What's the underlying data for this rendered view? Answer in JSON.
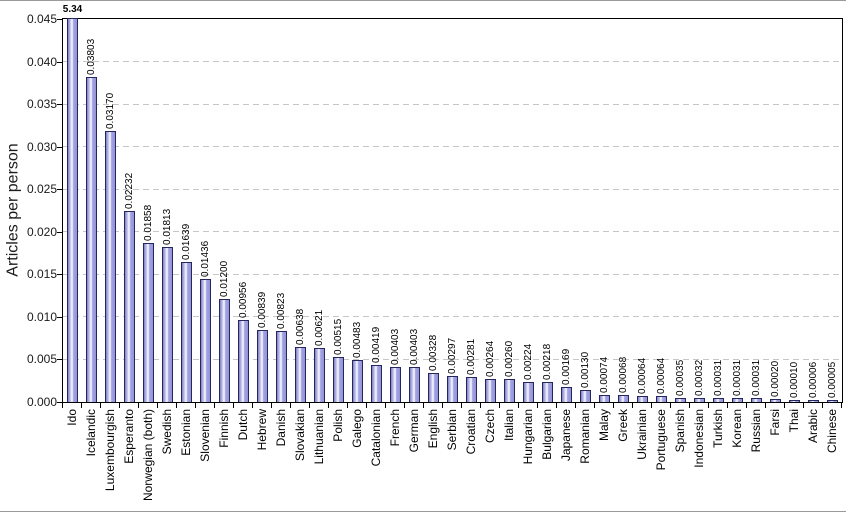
{
  "chart_data": {
    "type": "bar",
    "title": "",
    "xlabel": "",
    "ylabel": "Articles per person",
    "ylim": [
      0,
      0.045
    ],
    "y_tick_labels": [
      "0.000",
      "0.005",
      "0.010",
      "0.015",
      "0.020",
      "0.025",
      "0.030",
      "0.035",
      "0.040",
      "0.045"
    ],
    "grid": "horizontal dashed gridlines at every 0.005",
    "legend": "none",
    "note": "First bar (Ido, 5.34) far exceeds the y-axis maximum and is clipped at the top of the plot box; its label is horizontal and bold while all other value labels are rotated 90deg",
    "bar_fill_color": "#9a9ade",
    "bar_highlight_color": "#ffffff",
    "bar_border_color": "#26265e",
    "gridline_color": "#c6c6c6",
    "categories": [
      "Ido",
      "Icelandic",
      "Luxembourgish",
      "Esperanto",
      "Norwegian (both)",
      "Swedish",
      "Estonian",
      "Slovenian",
      "Finnish",
      "Dutch",
      "Hebrew",
      "Danish",
      "Slovakian",
      "Lithuanian",
      "Polish",
      "Galego",
      "Catalonian",
      "French",
      "German",
      "English",
      "Serbian",
      "Croatian",
      "Czech",
      "Italian",
      "Hungarian",
      "Bulgarian",
      "Japanese",
      "Romanian",
      "Malay",
      "Greek",
      "Ukrainian",
      "Portuguese",
      "Spanish",
      "Indonesian",
      "Turkish",
      "Korean",
      "Russian",
      "Farsi",
      "Thai",
      "Arabic",
      "Chinese"
    ],
    "values": [
      5.34,
      0.03803,
      0.0317,
      0.02232,
      0.01858,
      0.01813,
      0.01639,
      0.01436,
      0.012,
      0.00956,
      0.00839,
      0.00823,
      0.00638,
      0.00621,
      0.00515,
      0.00483,
      0.00419,
      0.00403,
      0.00403,
      0.00328,
      0.00297,
      0.00281,
      0.00264,
      0.0026,
      0.00224,
      0.00218,
      0.00169,
      0.0013,
      0.00074,
      0.00068,
      0.00064,
      0.00064,
      0.00035,
      0.00032,
      0.00031,
      0.00031,
      0.00031,
      0.0002,
      0.0001,
      6e-05,
      5e-05
    ],
    "value_labels": [
      "5.34",
      "0.03803",
      "0.03170",
      "0.02232",
      "0.01858",
      "0.01813",
      "0.01639",
      "0.01436",
      "0.01200",
      "0.00956",
      "0.00839",
      "0.00823",
      "0.00638",
      "0.00621",
      "0.00515",
      "0.00483",
      "0.00419",
      "0.00403",
      "0.00403",
      "0.00328",
      "0.00297",
      "0.00281",
      "0.00264",
      "0.00260",
      "0.00224",
      "0.00218",
      "0.00169",
      "0.00130",
      "0.00074",
      "0.00068",
      "0.00064",
      "0.00064",
      "0.00035",
      "0.00032",
      "0.00031",
      "0.00031",
      "0.00031",
      "0.00020",
      "0.00010",
      "0.00006",
      "0.00005"
    ]
  }
}
